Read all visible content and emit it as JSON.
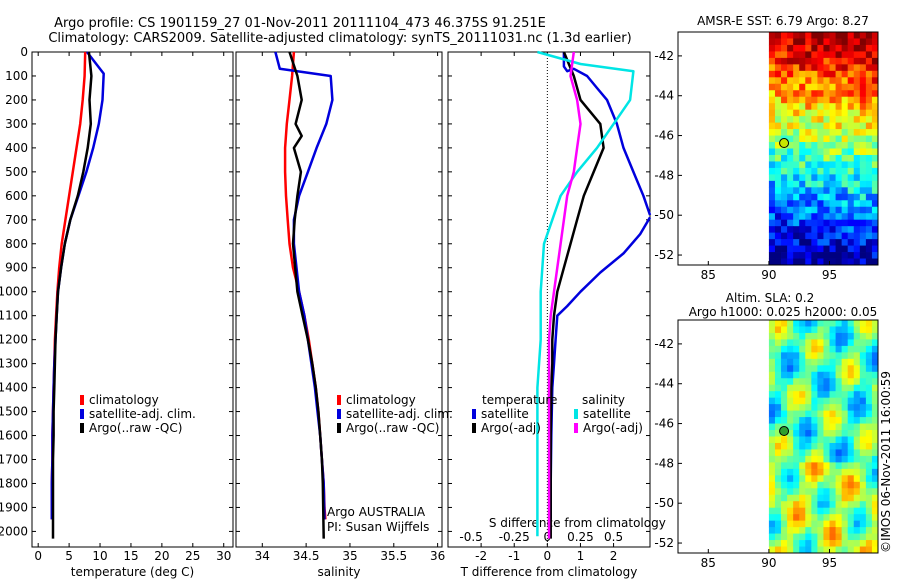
{
  "header": {
    "line1": "Argo profile: CS 1901159_27 01-Nov-2011 20111104_473 46.375S 91.251E",
    "line2": "Climatology: CARS2009. Satellite-adjusted climatology: synTS_20111031.nc (1.3d earlier)"
  },
  "colors": {
    "climatology": "#ff0000",
    "satellite": "#0000dd",
    "argo": "#000000",
    "sal_satellite": "#00e5e5",
    "sal_argo": "#ff00ff"
  },
  "depth_axis": {
    "ticks": [
      "0",
      "100",
      "200",
      "300",
      "400",
      "500",
      "600",
      "700",
      "800",
      "900",
      "1000",
      "1100",
      "1200",
      "1300",
      "1400",
      "1500",
      "1600",
      "1700",
      "1800",
      "1900",
      "2000"
    ]
  },
  "chart_data": [
    {
      "id": "temperature",
      "type": "line",
      "xlabel": "temperature (deg C)",
      "xlim": [
        -1,
        31.5
      ],
      "ylim": [
        0,
        2065
      ],
      "xticks": [
        "0",
        "5",
        "10",
        "15",
        "20",
        "25",
        "30"
      ],
      "legend": [
        "climatology",
        "satellite-adj. clim.",
        "Argo(..raw -QC)"
      ],
      "series": [
        {
          "name": "climatology",
          "color_key": "climatology",
          "x": [
            7.6,
            7.5,
            7.2,
            6.8,
            6.2,
            5.6,
            5.0,
            4.4,
            3.8,
            3.4,
            3.1,
            2.9,
            2.7,
            2.6,
            2.5,
            2.4,
            2.3,
            2.3,
            2.2,
            2.2,
            2.2
          ],
          "y": [
            0,
            100,
            200,
            300,
            400,
            500,
            600,
            700,
            800,
            900,
            1000,
            1100,
            1200,
            1300,
            1400,
            1500,
            1600,
            1700,
            1800,
            1900,
            1950
          ]
        },
        {
          "name": "satellite-adj. clim.",
          "color_key": "satellite",
          "x": [
            7.9,
            10.6,
            10.4,
            9.8,
            8.9,
            7.8,
            6.5,
            5.2,
            4.3,
            3.7,
            3.2,
            3.0,
            2.8,
            2.6,
            2.5,
            2.4,
            2.3,
            2.3,
            2.2,
            2.2
          ],
          "y": [
            0,
            90,
            200,
            300,
            400,
            500,
            600,
            700,
            800,
            900,
            1000,
            1100,
            1200,
            1300,
            1400,
            1500,
            1600,
            1700,
            1800,
            1950
          ]
        },
        {
          "name": "Argo(..raw -QC)",
          "color_key": "argo",
          "x": [
            8.2,
            8.6,
            8.3,
            8.5,
            8.0,
            7.3,
            6.4,
            5.2,
            4.3,
            3.7,
            3.2,
            3.0,
            2.8,
            2.7,
            2.6,
            2.5,
            2.5,
            2.4,
            2.4,
            2.4
          ],
          "y": [
            0,
            100,
            200,
            300,
            400,
            500,
            600,
            700,
            800,
            900,
            1000,
            1100,
            1200,
            1300,
            1400,
            1500,
            1600,
            1700,
            1800,
            2030
          ]
        }
      ]
    },
    {
      "id": "salinity",
      "type": "line",
      "xlabel": "salinity",
      "xlim": [
        33.7,
        36.05
      ],
      "ylim": [
        0,
        2065
      ],
      "xticks": [
        "34",
        "34.5",
        "35",
        "35.5",
        "36"
      ],
      "legend": [
        "climatology",
        "satellite-adj. clim.",
        "Argo(..raw -QC)"
      ],
      "annotation": [
        "Argo AUSTRALIA",
        "PI: Susan Wijffels"
      ],
      "series": [
        {
          "name": "climatology",
          "color_key": "climatology",
          "x": [
            34.36,
            34.34,
            34.31,
            34.28,
            34.26,
            34.26,
            34.27,
            34.29,
            34.31,
            34.35,
            34.42,
            34.48,
            34.53,
            34.57,
            34.61,
            34.64,
            34.66,
            34.68,
            34.7,
            34.71,
            34.72
          ],
          "y": [
            0,
            100,
            200,
            300,
            400,
            500,
            600,
            700,
            800,
            900,
            1000,
            1100,
            1200,
            1300,
            1400,
            1500,
            1600,
            1700,
            1800,
            1900,
            1950
          ]
        },
        {
          "name": "satellite-adj. clim.",
          "color_key": "satellite",
          "x": [
            34.15,
            34.2,
            34.78,
            34.8,
            34.73,
            34.62,
            34.52,
            34.42,
            34.36,
            34.36,
            34.42,
            34.48,
            34.52,
            34.56,
            34.6,
            34.63,
            34.66,
            34.68,
            34.7,
            34.71
          ],
          "y": [
            0,
            70,
            100,
            200,
            300,
            400,
            500,
            600,
            700,
            800,
            1000,
            1100,
            1200,
            1300,
            1400,
            1500,
            1600,
            1700,
            1800,
            1950
          ]
        },
        {
          "name": "Argo(..raw -QC)",
          "color_key": "argo",
          "x": [
            34.31,
            34.4,
            34.45,
            34.38,
            34.45,
            34.36,
            34.44,
            34.4,
            34.37,
            34.35,
            34.4,
            34.46,
            34.52,
            34.57,
            34.61,
            34.64,
            34.66,
            34.68,
            34.69,
            34.7
          ],
          "y": [
            0,
            100,
            200,
            300,
            350,
            400,
            500,
            600,
            700,
            800,
            1000,
            1100,
            1200,
            1300,
            1400,
            1500,
            1600,
            1700,
            1800,
            2030
          ]
        }
      ]
    },
    {
      "id": "difference",
      "type": "line",
      "xlabel": "T difference from climatology",
      "xlabel_top": "S difference from climatology",
      "xlim": [
        -3,
        3.1
      ],
      "ylim": [
        0,
        2065
      ],
      "xticks": [
        "-2",
        "-1",
        "0",
        "1",
        "2"
      ],
      "xticks_top": [
        "-0.5",
        "-0.25",
        "0",
        "0.25",
        "0.5"
      ],
      "legend_temperature_title": "temperature",
      "legend_salinity_title": "salinity",
      "legend": [
        "satellite",
        "Argo(-adj)",
        "satellite",
        "Argo(-adj)"
      ],
      "series": [
        {
          "name": "T satellite",
          "color_key": "satellite",
          "x": [
            0.5,
            0.5,
            0.6,
            0.8,
            1.2,
            1.5,
            1.8,
            2.1,
            2.3,
            2.6,
            2.9,
            3.1
          ],
          "y": [
            0,
            60,
            80,
            70,
            100,
            150,
            200,
            300,
            400,
            500,
            600,
            680
          ]
        },
        {
          "name": "T satellite deep",
          "color_key": "satellite",
          "x": [
            3.1,
            2.8,
            2.3,
            1.6,
            1.0,
            0.6,
            0.3,
            0.25,
            0.2,
            0.15,
            0.12,
            0.1,
            0.1
          ],
          "y": [
            690,
            760,
            840,
            920,
            1000,
            1060,
            1100,
            1200,
            1300,
            1400,
            1600,
            1800,
            1950
          ]
        },
        {
          "name": "T Argo(-adj)",
          "color_key": "argo",
          "x": [
            0.5,
            0.8,
            1.0,
            1.3,
            1.6,
            1.7,
            1.4,
            1.1,
            0.9,
            0.7,
            0.5,
            0.3,
            0.2,
            0.15,
            0.15,
            0.12,
            0.1,
            0.1,
            0.1
          ],
          "y": [
            0,
            100,
            200,
            250,
            300,
            400,
            500,
            600,
            700,
            800,
            900,
            1000,
            1100,
            1200,
            1300,
            1400,
            1600,
            1800,
            2030
          ]
        },
        {
          "name": "S satellite",
          "color_key": "sal_satellite",
          "x": [
            -0.3,
            1.0,
            2.6,
            2.5,
            2.0,
            1.5,
            0.9,
            0.4,
            -0.1,
            -0.2,
            -0.2,
            -0.3,
            -0.3,
            -0.3,
            -0.3,
            -0.3
          ],
          "y": [
            0,
            50,
            80,
            200,
            300,
            400,
            500,
            600,
            800,
            1000,
            1200,
            1400,
            1600,
            1800,
            1900,
            2020
          ]
        },
        {
          "name": "S Argo(-adj)",
          "color_key": "sal_argo",
          "x": [
            0.8,
            0.7,
            0.9,
            1.0,
            0.9,
            0.8,
            0.6,
            0.5,
            0.4,
            0.3,
            0.2,
            0.1,
            0.05,
            0.05,
            0.05,
            0.05,
            0.05
          ],
          "y": [
            0,
            100,
            200,
            300,
            400,
            500,
            600,
            700,
            800,
            900,
            1000,
            1100,
            1200,
            1400,
            1600,
            1800,
            2030
          ]
        }
      ]
    },
    {
      "id": "sst_map",
      "type": "heatmap",
      "title": "AMSR-E SST: 6.79 Argo: 8.27",
      "xlim": [
        82.5,
        99
      ],
      "ylim": [
        -52.5,
        -40.8
      ],
      "xticks": [
        "85",
        "90",
        "95"
      ],
      "yticks": [
        "-42",
        "-44",
        "-46",
        "-48",
        "-50",
        "-52"
      ],
      "data_xmin": 90,
      "marker": {
        "lon": 91.25,
        "lat": -46.375
      }
    },
    {
      "id": "sla_map",
      "type": "heatmap",
      "title": "Altim. SLA: 0.2",
      "subtitle": "Argo h1000: 0.025 h2000: 0.05",
      "xlim": [
        82.5,
        99
      ],
      "ylim": [
        -52.5,
        -40.8
      ],
      "xticks": [
        "85",
        "90",
        "95"
      ],
      "yticks": [
        "-42",
        "-44",
        "-46",
        "-48",
        "-50",
        "-52"
      ],
      "data_xmin": 90,
      "marker": {
        "lon": 91.25,
        "lat": -46.375
      }
    }
  ],
  "credit": "©IMOS 06-Nov-2011 16:00:59"
}
